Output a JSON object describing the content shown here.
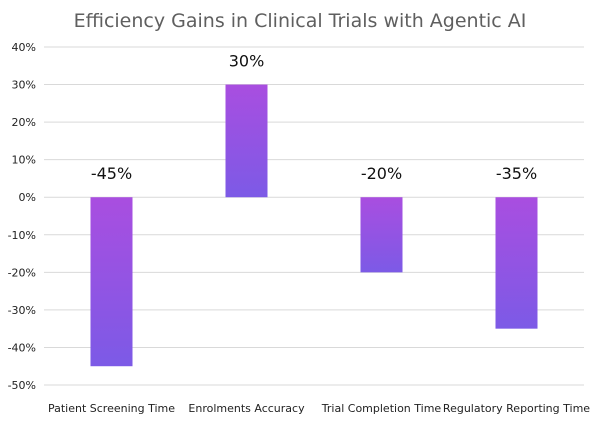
{
  "chart_data": {
    "type": "bar",
    "title": "Efficiency Gains in Clinical Trials with Agentic AI",
    "xlabel": "",
    "ylabel": "",
    "categories": [
      "Patient Screening Time",
      "Enrolments Accuracy",
      "Trial Completion Time",
      "Regulatory Reporting Time"
    ],
    "values": [
      -45,
      30,
      -20,
      -35
    ],
    "data_labels": [
      "-45%",
      "30%",
      "-20%",
      "-35%"
    ],
    "ylim": [
      -50,
      40
    ],
    "yticks": [
      40,
      30,
      20,
      10,
      0,
      -10,
      -20,
      -30,
      -40,
      -50
    ],
    "ytick_labels": [
      "40%",
      "30%",
      "20%",
      "10%",
      "0%",
      "-10%",
      "-20%",
      "-30%",
      "-40%",
      "-50%"
    ],
    "grid": true,
    "colors": {
      "bar_top": "#a94ee0",
      "bar_bottom": "#7c5ae6",
      "grid": "#d9d9d9",
      "title": "#5f5f5f"
    }
  }
}
